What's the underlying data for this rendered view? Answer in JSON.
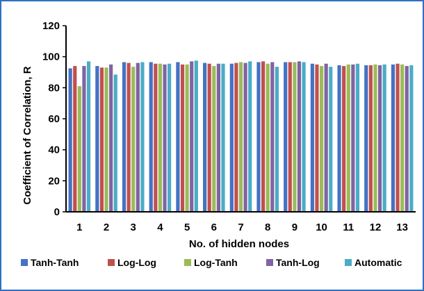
{
  "chart_data": {
    "type": "bar",
    "xlabel": "No. of hidden nodes",
    "ylabel": "Coefficient of Correlation, R",
    "ylim": [
      0,
      120
    ],
    "yticks": [
      0,
      20,
      40,
      60,
      80,
      100,
      120
    ],
    "categories": [
      "1",
      "2",
      "3",
      "4",
      "5",
      "6",
      "7",
      "8",
      "9",
      "10",
      "11",
      "12",
      "13"
    ],
    "series": [
      {
        "name": "Tanh-Tanh",
        "color": "#4472c4",
        "values": [
          92.5,
          94,
          96.5,
          96.5,
          96.5,
          96,
          95.5,
          96.5,
          96.5,
          95.5,
          94.5,
          94.5,
          95
        ]
      },
      {
        "name": "Log-Log",
        "color": "#c0504d",
        "values": [
          94,
          93,
          96,
          95.5,
          95,
          95.5,
          96,
          97,
          96.5,
          95,
          94,
          94.5,
          95.5
        ]
      },
      {
        "name": "Log-Tanh",
        "color": "#9bbb59",
        "values": [
          81,
          93,
          93.5,
          95.5,
          95,
          94,
          96.5,
          95.5,
          96.5,
          94,
          95,
          95,
          95
        ]
      },
      {
        "name": "Tanh-Log",
        "color": "#8064a2",
        "values": [
          94,
          95,
          96,
          95,
          97,
          95.5,
          96,
          96.5,
          97,
          95.5,
          95,
          94.5,
          94
        ]
      },
      {
        "name": "Automatic",
        "color": "#4bacc6",
        "values": [
          97,
          88.5,
          96.5,
          95.5,
          97.5,
          95.5,
          97,
          93.5,
          96.5,
          93.5,
          95.5,
          95,
          94.5
        ]
      }
    ],
    "legend": "bottom",
    "grid": false
  }
}
